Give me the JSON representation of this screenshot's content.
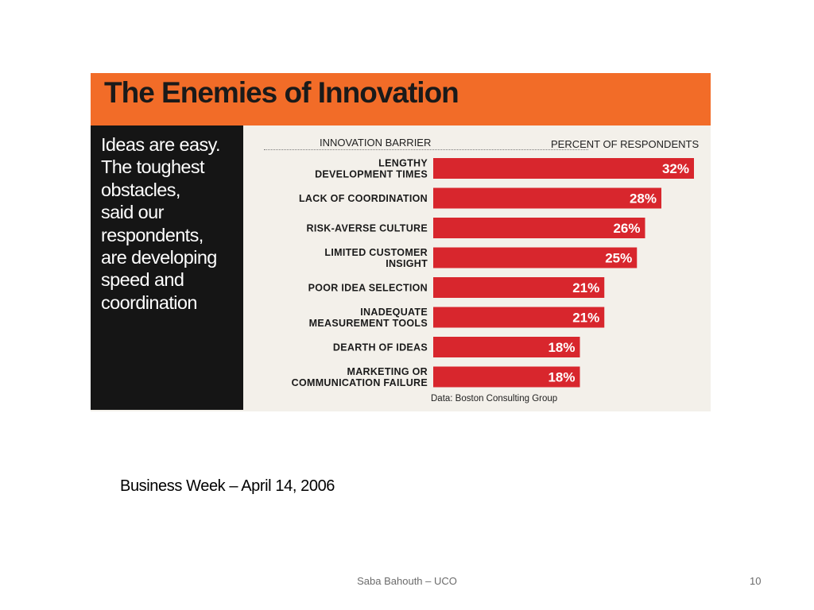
{
  "slide": {
    "caption": "Business Week – April 14, 2006",
    "footer": "Saba Bahouth – UCO",
    "page_number": "10"
  },
  "sidebar_text": "Ideas are easy.\nThe toughest\nobstacles,\nsaid our\nrespondents,\nare developing\nspeed and\ncoordination",
  "colors": {
    "title_band": "#f26c28",
    "left_panel": "#151515",
    "bar": "#d8262d",
    "background": "#f3f0ea"
  },
  "chart_data": {
    "type": "bar",
    "orientation": "horizontal",
    "title": "The Enemies of Innovation",
    "category_header": "INNOVATION BARRIER",
    "value_header": "PERCENT OF RESPONDENTS",
    "categories": [
      "LENGTHY DEVELOPMENT TIMES",
      "LACK OF COORDINATION",
      "RISK-AVERSE CULTURE",
      "LIMITED CUSTOMER INSIGHT",
      "POOR IDEA SELECTION",
      "INADEQUATE MEASUREMENT TOOLS",
      "DEARTH OF IDEAS",
      "MARKETING OR COMMUNICATION FAILURE"
    ],
    "category_lines": [
      [
        "LENGTHY",
        "DEVELOPMENT TIMES"
      ],
      [
        "LACK OF COORDINATION"
      ],
      [
        "RISK-AVERSE CULTURE"
      ],
      [
        "LIMITED CUSTOMER",
        "INSIGHT"
      ],
      [
        "POOR IDEA SELECTION"
      ],
      [
        "INADEQUATE",
        "MEASUREMENT TOOLS"
      ],
      [
        "DEARTH OF IDEAS"
      ],
      [
        "MARKETING OR",
        "COMMUNICATION FAILURE"
      ]
    ],
    "values": [
      32,
      28,
      26,
      25,
      21,
      21,
      18,
      18
    ],
    "value_labels": [
      "32%",
      "28%",
      "26%",
      "25%",
      "21%",
      "21%",
      "18%",
      "18%"
    ],
    "unit": "%",
    "source": "Data: Boston Consulting Group",
    "grid": false,
    "legend": "none"
  }
}
